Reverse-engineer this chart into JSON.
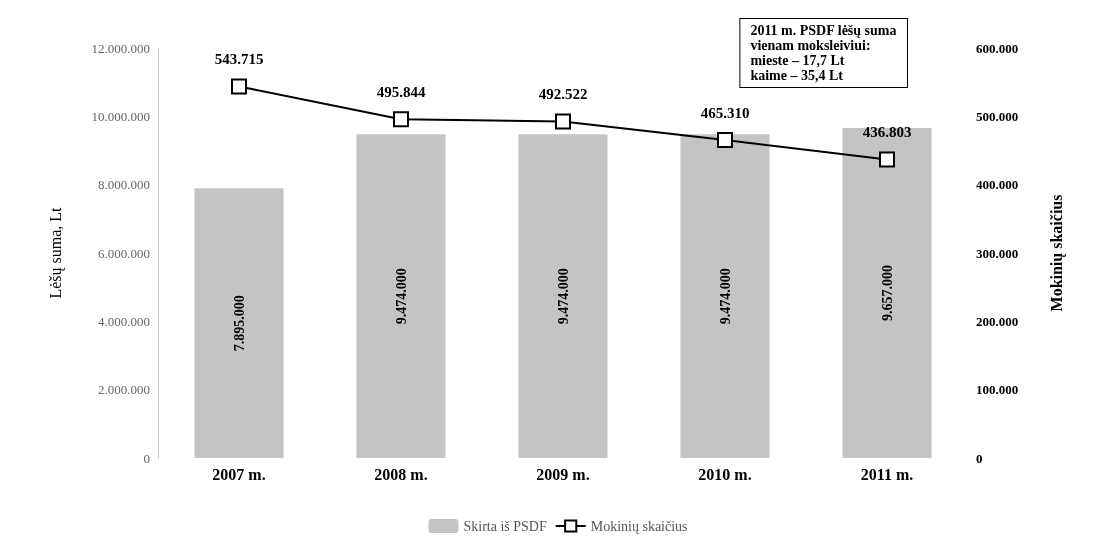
{
  "chart_data": {
    "type": "bar",
    "categories": [
      "2007 m.",
      "2008 m.",
      "2009 m.",
      "2010 m.",
      "2011 m."
    ],
    "ylabel": "Lėšų suma, Lt",
    "y2label": "Mokinių skaičius",
    "series": [
      {
        "name": "Skirta iš PSDF",
        "color": "#c4c4c4",
        "values": [
          7895000,
          9474000,
          9474000,
          9474000,
          9657000
        ],
        "value_labels": [
          "7.895.000",
          "9.474.000",
          "9.474.000",
          "9.474.000",
          "9.657.000"
        ]
      },
      {
        "name": "Mokinių skaičius",
        "type": "line",
        "axis": "y2",
        "color": "#000000",
        "marker": "square",
        "values": [
          543715,
          495844,
          492522,
          465310,
          436803
        ],
        "value_labels": [
          "543.715",
          "495.844",
          "492.522",
          "465.310",
          "436.803"
        ]
      }
    ],
    "ylim": [
      0,
      12000000
    ],
    "yticks": [
      {
        "value": 0,
        "label": "0"
      },
      {
        "value": 2000000,
        "label": "2.000.000"
      },
      {
        "value": 4000000,
        "label": "4.000.000"
      },
      {
        "value": 6000000,
        "label": "6.000.000"
      },
      {
        "value": 8000000,
        "label": "8.000.000"
      },
      {
        "value": 10000000,
        "label": "10.000.000"
      },
      {
        "value": 12000000,
        "label": "12.000.000"
      }
    ],
    "y2lim": [
      0,
      600000
    ],
    "y2ticks": [
      {
        "value": 0,
        "label": "0"
      },
      {
        "value": 100000,
        "label": "100.000"
      },
      {
        "value": 200000,
        "label": "200.000"
      },
      {
        "value": 300000,
        "label": "300.000"
      },
      {
        "value": 400000,
        "label": "400.000"
      },
      {
        "value": 500000,
        "label": "500.000"
      },
      {
        "value": 600000,
        "label": "600.000"
      }
    ],
    "annotations": [
      "2011 m. PSDF lėšų suma\nvienam moksleiviui:\nmieste – 17,7 Lt\nkaime – 35,4 Lt"
    ],
    "legend": "bottom"
  }
}
